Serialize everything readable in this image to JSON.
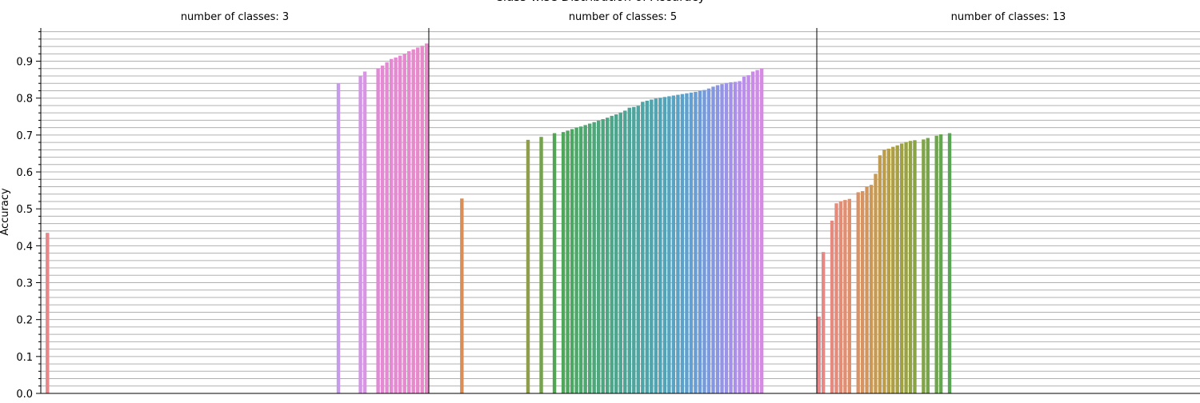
{
  "chart_data": {
    "type": "bar",
    "title": "Class-wise Distribution of Accuracy",
    "ylabel": "Accuracy",
    "ylim": [
      0,
      0.99
    ],
    "yticks": [
      0.0,
      0.1,
      0.2,
      0.3,
      0.4,
      0.5,
      0.6,
      0.7,
      0.8,
      0.9
    ],
    "ytick_labels": [
      "0.0",
      "0.1",
      "0.2",
      "0.3",
      "0.4",
      "0.5",
      "0.6",
      "0.7",
      "0.8",
      "0.9"
    ],
    "grid": "horizontal minor",
    "slots": 88,
    "panels": [
      {
        "subtitle": "number of classes: 3",
        "bars": [
          {
            "slot": 2,
            "value": 0.435,
            "color": "#e8878a"
          },
          {
            "slot": 68,
            "value": 0.84,
            "color": "#c49cea"
          },
          {
            "slot": 73,
            "value": 0.86,
            "color": "#d396e6"
          },
          {
            "slot": 74,
            "value": 0.872,
            "color": "#d895e4"
          },
          {
            "slot": 77,
            "value": 0.88,
            "color": "#e08ad6"
          },
          {
            "slot": 78,
            "value": 0.888,
            "color": "#e38ad2"
          },
          {
            "slot": 79,
            "value": 0.897,
            "color": "#e38ad2"
          },
          {
            "slot": 80,
            "value": 0.906,
            "color": "#e38ad2"
          },
          {
            "slot": 81,
            "value": 0.91,
            "color": "#e48ad0"
          },
          {
            "slot": 82,
            "value": 0.915,
            "color": "#e48ad0"
          },
          {
            "slot": 83,
            "value": 0.92,
            "color": "#e58ace"
          },
          {
            "slot": 84,
            "value": 0.927,
            "color": "#e58ace"
          },
          {
            "slot": 85,
            "value": 0.932,
            "color": "#e68acc"
          },
          {
            "slot": 86,
            "value": 0.937,
            "color": "#e68acc"
          },
          {
            "slot": 87,
            "value": 0.942,
            "color": "#e78aca"
          },
          {
            "slot": 88,
            "value": 0.948,
            "color": "#e78aca"
          }
        ]
      },
      {
        "subtitle": "number of classes: 5",
        "bars": [
          {
            "slot": 8,
            "value": 0.528,
            "color": "#d98e57"
          },
          {
            "slot": 23,
            "value": 0.687,
            "color": "#8f9e4a"
          },
          {
            "slot": 26,
            "value": 0.695,
            "color": "#74a34c"
          },
          {
            "slot": 29,
            "value": 0.705,
            "color": "#52a554"
          },
          {
            "slot": 31,
            "value": 0.708,
            "color": "#4fa75c"
          },
          {
            "slot": 32,
            "value": 0.712,
            "color": "#4fa760"
          },
          {
            "slot": 33,
            "value": 0.716,
            "color": "#4fa765"
          },
          {
            "slot": 34,
            "value": 0.72,
            "color": "#4ea769"
          },
          {
            "slot": 35,
            "value": 0.723,
            "color": "#4ea76d"
          },
          {
            "slot": 36,
            "value": 0.727,
            "color": "#4ea771"
          },
          {
            "slot": 37,
            "value": 0.731,
            "color": "#4ea775"
          },
          {
            "slot": 38,
            "value": 0.735,
            "color": "#4ea779"
          },
          {
            "slot": 39,
            "value": 0.739,
            "color": "#4ea77d"
          },
          {
            "slot": 40,
            "value": 0.743,
            "color": "#4ea681"
          },
          {
            "slot": 41,
            "value": 0.747,
            "color": "#4ea685"
          },
          {
            "slot": 42,
            "value": 0.752,
            "color": "#4ea689"
          },
          {
            "slot": 43,
            "value": 0.756,
            "color": "#4ea58d"
          },
          {
            "slot": 44,
            "value": 0.761,
            "color": "#4ea591"
          },
          {
            "slot": 45,
            "value": 0.766,
            "color": "#4ea595"
          },
          {
            "slot": 46,
            "value": 0.774,
            "color": "#4ea599"
          },
          {
            "slot": 47,
            "value": 0.776,
            "color": "#4fa59d"
          },
          {
            "slot": 48,
            "value": 0.779,
            "color": "#4fa5a1"
          },
          {
            "slot": 49,
            "value": 0.79,
            "color": "#4fa4a5"
          },
          {
            "slot": 50,
            "value": 0.793,
            "color": "#50a4a9"
          },
          {
            "slot": 51,
            "value": 0.796,
            "color": "#50a4ad"
          },
          {
            "slot": 52,
            "value": 0.799,
            "color": "#51a4b1"
          },
          {
            "slot": 53,
            "value": 0.801,
            "color": "#52a4b5"
          },
          {
            "slot": 54,
            "value": 0.803,
            "color": "#53a3b9"
          },
          {
            "slot": 55,
            "value": 0.805,
            "color": "#55a3bd"
          },
          {
            "slot": 56,
            "value": 0.807,
            "color": "#57a3c1"
          },
          {
            "slot": 57,
            "value": 0.809,
            "color": "#59a2c5"
          },
          {
            "slot": 58,
            "value": 0.811,
            "color": "#5ca1c9"
          },
          {
            "slot": 59,
            "value": 0.813,
            "color": "#60a0cd"
          },
          {
            "slot": 60,
            "value": 0.815,
            "color": "#649fd1"
          },
          {
            "slot": 61,
            "value": 0.817,
            "color": "#699ed5"
          },
          {
            "slot": 62,
            "value": 0.82,
            "color": "#6f9cd8"
          },
          {
            "slot": 63,
            "value": 0.822,
            "color": "#759bdb"
          },
          {
            "slot": 64,
            "value": 0.826,
            "color": "#7c99de"
          },
          {
            "slot": 65,
            "value": 0.831,
            "color": "#8398e1"
          },
          {
            "slot": 66,
            "value": 0.835,
            "color": "#8b96e3"
          },
          {
            "slot": 67,
            "value": 0.838,
            "color": "#9394e5"
          },
          {
            "slot": 68,
            "value": 0.841,
            "color": "#9b93e7"
          },
          {
            "slot": 69,
            "value": 0.843,
            "color": "#a391e8"
          },
          {
            "slot": 70,
            "value": 0.844,
            "color": "#ab90e9"
          },
          {
            "slot": 71,
            "value": 0.846,
            "color": "#b38fea"
          },
          {
            "slot": 72,
            "value": 0.858,
            "color": "#ba8eea"
          },
          {
            "slot": 73,
            "value": 0.862,
            "color": "#c18de9"
          },
          {
            "slot": 74,
            "value": 0.872,
            "color": "#c88ce8"
          },
          {
            "slot": 75,
            "value": 0.876,
            "color": "#cf8be6"
          },
          {
            "slot": 76,
            "value": 0.88,
            "color": "#d58ae3"
          }
        ]
      },
      {
        "subtitle": "number of classes: 13",
        "bars": [
          {
            "slot": 1,
            "value": 0.208,
            "color": "#e8878a"
          },
          {
            "slot": 2,
            "value": 0.383,
            "color": "#e88885"
          },
          {
            "slot": 4,
            "value": 0.468,
            "color": "#e68a80"
          },
          {
            "slot": 5,
            "value": 0.515,
            "color": "#e58b7b"
          },
          {
            "slot": 6,
            "value": 0.52,
            "color": "#e38c76"
          },
          {
            "slot": 7,
            "value": 0.524,
            "color": "#e18e71"
          },
          {
            "slot": 8,
            "value": 0.527,
            "color": "#de8f6c"
          },
          {
            "slot": 10,
            "value": 0.545,
            "color": "#d99267"
          },
          {
            "slot": 11,
            "value": 0.548,
            "color": "#d59462"
          },
          {
            "slot": 12,
            "value": 0.56,
            "color": "#d1965d"
          },
          {
            "slot": 13,
            "value": 0.565,
            "color": "#cc9858"
          },
          {
            "slot": 14,
            "value": 0.595,
            "color": "#c79a53"
          },
          {
            "slot": 15,
            "value": 0.645,
            "color": "#c19b4f"
          },
          {
            "slot": 16,
            "value": 0.66,
            "color": "#bb9d4b"
          },
          {
            "slot": 17,
            "value": 0.663,
            "color": "#b59e48"
          },
          {
            "slot": 18,
            "value": 0.668,
            "color": "#ae9f46"
          },
          {
            "slot": 19,
            "value": 0.672,
            "color": "#a7a044"
          },
          {
            "slot": 20,
            "value": 0.677,
            "color": "#a0a143"
          },
          {
            "slot": 21,
            "value": 0.681,
            "color": "#99a243"
          },
          {
            "slot": 22,
            "value": 0.684,
            "color": "#91a344"
          },
          {
            "slot": 23,
            "value": 0.686,
            "color": "#89a446"
          },
          {
            "slot": 25,
            "value": 0.688,
            "color": "#81a448"
          },
          {
            "slot": 26,
            "value": 0.692,
            "color": "#78a54b"
          },
          {
            "slot": 28,
            "value": 0.698,
            "color": "#6fa54e"
          },
          {
            "slot": 29,
            "value": 0.702,
            "color": "#65a651"
          },
          {
            "slot": 31,
            "value": 0.705,
            "color": "#58a654"
          }
        ]
      }
    ]
  }
}
